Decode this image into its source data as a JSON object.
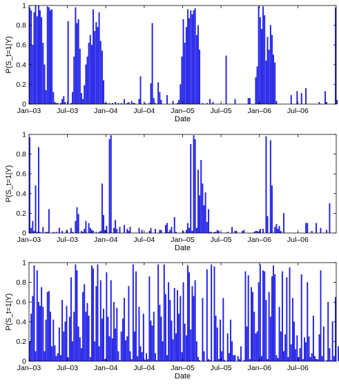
{
  "bar_color": "#1f1ff5",
  "chart_data": [
    {
      "type": "bar",
      "xlabel": "Date",
      "ylabel": "P(S_t=1|Y)",
      "ylim": [
        0,
        1
      ],
      "yticks": [
        "0",
        "0.2",
        "0.4",
        "0.6",
        "0.8",
        "1"
      ],
      "xticks": [
        "Jan–03",
        "Jul–03",
        "Jan–04",
        "Jul–04",
        "Jan–05",
        "Jul–05",
        "Jan–06",
        "Jul–06"
      ],
      "xlim_weeks": [
        0,
        208
      ],
      "grid": false,
      "values": [
        0.98,
        0.95,
        0.6,
        0.93,
        1.0,
        0.89,
        1.0,
        0.95,
        0.88,
        0.62,
        0.4,
        0.14,
        0.99,
        0.98,
        0.95,
        0.96,
        0.12,
        0.02,
        0.01,
        0.01,
        0.0,
        0.01,
        0.05,
        0.08,
        0.02,
        0.0,
        0.84,
        0.0,
        0.01,
        0.12,
        0.48,
        0.98,
        0.82,
        0.86,
        0.56,
        0.11,
        0.05,
        0.19,
        0.4,
        0.48,
        0.62,
        0.7,
        0.6,
        0.96,
        0.74,
        0.83,
        0.78,
        0.93,
        0.64,
        0.54,
        0.24,
        0.01,
        0.01,
        0.0,
        0.01,
        0.0,
        0.01,
        0.0,
        0.02,
        0.0,
        0.01,
        0.0,
        0.01,
        0.0,
        0.05,
        0.0,
        0.01,
        0.02,
        0.0,
        0.03,
        0.01,
        0.01,
        0.0,
        0.0,
        0.05,
        0.28,
        0.0,
        0.0,
        0.01,
        0.0,
        0.0,
        0.01,
        0.21,
        0.82,
        0.06,
        0.01,
        0.0,
        0.22,
        0.12,
        0.04,
        0.0,
        0.0,
        0.0,
        0.09,
        0.0,
        0.0,
        0.0,
        0.03,
        0.0,
        0.0,
        0.01,
        0.04,
        0.2,
        0.48,
        0.86,
        0.62,
        0.78,
        0.96,
        0.87,
        0.95,
        0.91,
        0.95,
        0.97,
        0.7,
        0.8,
        0.55,
        0.0,
        0.01,
        0.0,
        0.0,
        0.01,
        0.0,
        0.05,
        0.0,
        0.02,
        0.0,
        0.0,
        0.0,
        0.0,
        0.0,
        0.0,
        0.0,
        0.0,
        0.49,
        0.0,
        0.0,
        0.0,
        0.0,
        0.0,
        0.05,
        0.0,
        0.0,
        0.0,
        0.0,
        0.0,
        0.0,
        0.0,
        0.0,
        0.06,
        0.06,
        0.0,
        0.0,
        0.0,
        0.27,
        0.38,
        0.99,
        0.88,
        0.76,
        0.99,
        0.9,
        0.44,
        0.68,
        0.55,
        0.8,
        0.7,
        0.5,
        0.42,
        0.03,
        0.0,
        0.0,
        0.0,
        0.0,
        0.0,
        0.0,
        0.0,
        0.0,
        0.0,
        0.09,
        0.0,
        0.0,
        0.0,
        0.13,
        0.0,
        0.0,
        0.11,
        0.0,
        0.0,
        0.16,
        0.0,
        0.0,
        0.0,
        0.0,
        0.0,
        0.0,
        0.0,
        0.0,
        0.02,
        0.0,
        0.0,
        0.0,
        0.13,
        0.02,
        0.0,
        0.0,
        0.0,
        0.0,
        0.0,
        0.98,
        0.04,
        0.0,
        0.74,
        0.0,
        0.01,
        0.06,
        0.04
      ]
    },
    {
      "type": "bar",
      "xlabel": "Date",
      "ylabel": "P(S_t=1|Y)",
      "ylim": [
        0,
        1
      ],
      "yticks": [
        "0",
        "0.2",
        "0.4",
        "0.6",
        "0.8",
        "1"
      ],
      "xticks": [
        "Jan–03",
        "Jul–03",
        "Jan–04",
        "Jul–04",
        "Jan–05",
        "Jul–05",
        "Jan–06",
        "Jul–06"
      ],
      "xlim_weeks": [
        0,
        208
      ],
      "grid": false,
      "values": [
        0.97,
        0.05,
        0.12,
        0.02,
        0.48,
        0.01,
        0.87,
        0.01,
        0.0,
        0.06,
        0.0,
        0.01,
        0.01,
        0.24,
        0.0,
        0.0,
        0.01,
        0.0,
        0.01,
        0.0,
        0.05,
        0.0,
        0.02,
        0.0,
        0.0,
        0.03,
        0.0,
        0.0,
        0.05,
        0.01,
        0.0,
        0.12,
        0.26,
        0.19,
        0.0,
        0.02,
        0.01,
        0.04,
        0.12,
        0.0,
        0.1,
        0.05,
        0.03,
        0.02,
        0.0,
        0.01,
        0.0,
        0.01,
        0.02,
        0.5,
        0.18,
        0.03,
        0.07,
        0.0,
        0.95,
        0.99,
        0.0,
        0.05,
        0.13,
        0.04,
        0.0,
        0.06,
        0.0,
        0.0,
        0.08,
        0.0,
        0.04,
        0.02,
        0.06,
        0.0,
        0.0,
        0.0,
        0.0,
        0.0,
        0.05,
        0.0,
        0.03,
        0.0,
        0.0,
        0.0,
        0.0,
        0.02,
        0.05,
        0.0,
        0.0,
        0.04,
        0.0,
        0.0,
        0.03,
        0.03,
        0.0,
        0.0,
        0.08,
        0.1,
        0.01,
        0.03,
        0.06,
        0.0,
        0.16,
        0.01,
        0.0,
        0.0,
        0.0,
        0.0,
        0.02,
        0.0,
        0.03,
        0.1,
        0.05,
        0.9,
        0.02,
        0.99,
        0.95,
        0.05,
        0.64,
        0.38,
        0.74,
        0.5,
        0.28,
        0.41,
        0.11,
        0.24,
        0.01,
        0.01,
        0.0,
        0.01,
        0.01,
        0.03,
        0.02,
        0.0,
        0.0,
        0.0,
        0.0,
        0.0,
        0.01,
        0.0,
        0.0,
        0.06,
        0.0,
        0.02,
        0.02,
        0.0,
        0.0,
        0.0,
        0.02,
        0.03,
        0.0,
        0.0,
        0.0,
        0.0,
        0.0,
        0.0,
        0.01,
        0.02,
        0.02,
        0.01,
        0.04,
        0.0,
        0.04,
        0.0,
        0.98,
        0.17,
        0.0,
        0.94,
        0.48,
        0.0,
        0.06,
        0.09,
        0.04,
        0.07,
        0.02,
        0.0,
        0.2,
        0.0,
        0.0,
        0.0,
        0.0,
        0.0,
        0.0,
        0.0,
        0.0,
        0.0,
        0.0,
        0.0,
        0.0,
        0.0,
        0.0,
        0.1,
        0.1,
        0.0,
        0.0,
        0.02,
        0.0,
        0.0,
        0.1,
        0.0,
        0.0,
        0.05,
        0.0,
        0.0,
        0.0,
        0.03,
        0.0,
        0.3,
        0.0,
        0.0,
        0.0,
        0.0,
        0.0,
        0.0,
        0.0,
        0.12,
        0.0,
        0.15,
        0.02,
        0.02,
        0.0,
        0.08,
        0.0,
        0.0,
        0.51,
        0.0,
        0.18,
        0.18
      ]
    },
    {
      "type": "bar",
      "xlabel": "Date",
      "ylabel": "P(S_t=1|Y)",
      "ylim": [
        0,
        1
      ],
      "yticks": [
        "0",
        "0.2",
        "0.4",
        "0.6",
        "0.8",
        "1"
      ],
      "xticks": [
        "Jan–03",
        "Jul–03",
        "Jan–04",
        "Jul–04",
        "Jan–05",
        "Jul–05",
        "Jan–06",
        "Jul–06"
      ],
      "xlim_weeks": [
        0,
        208
      ],
      "grid": false,
      "values": [
        0.2,
        0.48,
        0.66,
        0.97,
        0.1,
        0.92,
        0.6,
        0.56,
        0.75,
        0.55,
        0.1,
        0.42,
        0.7,
        0.71,
        0.5,
        0.15,
        0.42,
        0.16,
        0.05,
        0.08,
        0.34,
        0.06,
        0.62,
        0.3,
        0.4,
        0.56,
        0.04,
        0.45,
        0.85,
        0.2,
        0.5,
        0.98,
        0.92,
        0.35,
        0.24,
        0.13,
        0.7,
        0.78,
        0.5,
        0.59,
        0.46,
        0.04,
        0.97,
        0.94,
        0.2,
        0.76,
        0.98,
        0.15,
        0.82,
        0.43,
        0.53,
        0.02,
        0.9,
        0.45,
        0.25,
        0.82,
        0.23,
        0.6,
        0.33,
        0.54,
        0.1,
        0.01,
        0.3,
        0.43,
        0.64,
        0.21,
        0.25,
        0.76,
        0.1,
        0.02,
        0.98,
        0.3,
        0.91,
        0.05,
        0.55,
        0.15,
        0.09,
        0.48,
        0.01,
        0.08,
        0.02,
        0.86,
        0.41,
        0.36,
        0.5,
        0.08,
        0.01,
        0.98,
        0.57,
        0.45,
        0.2,
        0.98,
        0.68,
        0.06,
        0.8,
        0.62,
        0.41,
        0.22,
        0.74,
        0.28,
        0.72,
        0.48,
        0.66,
        0.09,
        0.8,
        0.38,
        0.26,
        0.97,
        0.9,
        0.32,
        0.76,
        0.66,
        0.82,
        0.2,
        0.04,
        0.01,
        0.0,
        0.64,
        0.1,
        0.0,
        0.93,
        0.02,
        0.01,
        0.98,
        0.0,
        0.96,
        0.46,
        0.34,
        0.02,
        0.42,
        0.1,
        0.64,
        0.01,
        0.0,
        0.28,
        0.08,
        0.42,
        0.2,
        0.06,
        0.06,
        0.0,
        0.05,
        0.02,
        0.15,
        0.0,
        0.01,
        0.91,
        0.35,
        0.87,
        0.02,
        0.75,
        0.7,
        0.5,
        0.28,
        0.3,
        0.8,
        0.98,
        0.05,
        0.92,
        0.91,
        0.62,
        0.02,
        0.7,
        0.45,
        0.86,
        0.97,
        0.88,
        0.06,
        0.03,
        0.55,
        0.3,
        0.91,
        0.1,
        0.27,
        0.85,
        0.04,
        0.95,
        0.17,
        0.64,
        0.4,
        0.12,
        0.26,
        0.04,
        0.13,
        0.88,
        0.02,
        0.24,
        0.19,
        0.8,
        0.25,
        0.04,
        0.08,
        0.46,
        0.05,
        0.02,
        0.02,
        0.27,
        0.92,
        0.05,
        0.35,
        0.0,
        0.01,
        0.6,
        0.13,
        0.01,
        0.4,
        0.05,
        0.65,
        0.0,
        0.15,
        0.98,
        0.13,
        0.1,
        0.0
      ]
    }
  ]
}
